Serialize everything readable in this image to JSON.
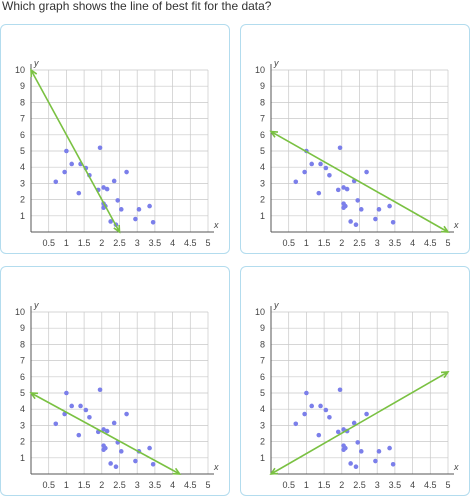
{
  "question": "Which graph shows the line of best fit for the data?",
  "axis": {
    "x_label": "x",
    "y_label": "y",
    "x_ticks": [
      "0.5",
      "1",
      "1.5",
      "2",
      "2.5",
      "3",
      "3.5",
      "4",
      "4.5",
      "5"
    ],
    "y_ticks": [
      "1",
      "2",
      "3",
      "4",
      "5",
      "6",
      "7",
      "8",
      "9",
      "10"
    ]
  },
  "colors": {
    "border": "#b3dcee",
    "grid": "#c8c8c8",
    "axis": "#555555",
    "point": "#7b7fea",
    "line": "#7ac142"
  },
  "chart_data": {
    "type": "scatter",
    "xlim": [
      0,
      5
    ],
    "ylim": [
      0,
      10
    ],
    "points": [
      [
        0.7,
        3.1
      ],
      [
        0.95,
        3.7
      ],
      [
        1.0,
        5.0
      ],
      [
        1.15,
        4.2
      ],
      [
        1.35,
        2.4
      ],
      [
        1.4,
        4.2
      ],
      [
        1.55,
        3.95
      ],
      [
        1.65,
        3.5
      ],
      [
        1.9,
        2.6
      ],
      [
        1.95,
        5.2
      ],
      [
        2.05,
        1.75
      ],
      [
        2.05,
        2.75
      ],
      [
        2.05,
        1.5
      ],
      [
        2.1,
        1.6
      ],
      [
        2.15,
        2.65
      ],
      [
        2.25,
        0.65
      ],
      [
        2.35,
        3.15
      ],
      [
        2.4,
        0.45
      ],
      [
        2.45,
        1.95
      ],
      [
        2.55,
        1.4
      ],
      [
        2.7,
        3.7
      ],
      [
        2.95,
        0.8
      ],
      [
        3.05,
        1.4
      ],
      [
        3.35,
        1.6
      ],
      [
        3.45,
        0.6
      ]
    ],
    "options": [
      {
        "line": [
          [
            0,
            10
          ],
          [
            2.5,
            0
          ]
        ]
      },
      {
        "line": [
          [
            0,
            6.2
          ],
          [
            5,
            0
          ]
        ]
      },
      {
        "line": [
          [
            0,
            5
          ],
          [
            4.2,
            0
          ]
        ]
      },
      {
        "line": [
          [
            0,
            0
          ],
          [
            5,
            6.3
          ]
        ]
      }
    ]
  }
}
